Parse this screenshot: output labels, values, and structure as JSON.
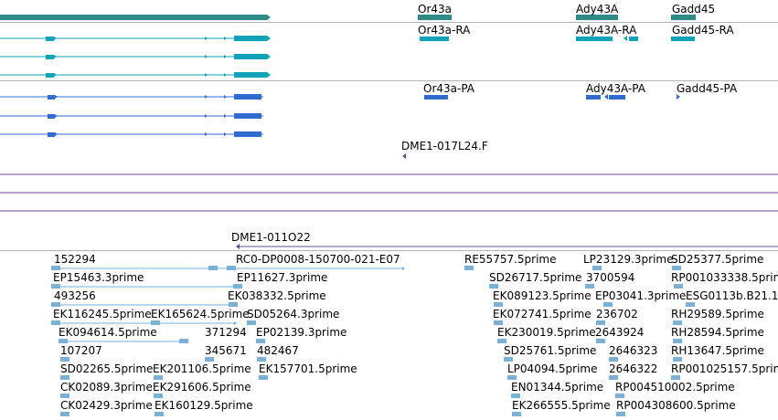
{
  "colors": {
    "gene": "#2e8b88",
    "transcript": "#11a3b8",
    "polypeptide": "#2f6bd0",
    "clone": "#6b4a9a",
    "est": "#79b2d8",
    "separator": "#b4b4b4"
  },
  "tracks": {
    "genes": {
      "labels": [
        "Or43a",
        "Ady43A",
        "Gadd45"
      ]
    },
    "transcripts": {
      "labels": [
        "Or43a-RA",
        "Ady43A-RA",
        "Gadd45-RA"
      ]
    },
    "polypeptides": {
      "labels": [
        "Or43a-PA",
        "Ady43A-PA",
        "Gadd45-PA"
      ]
    },
    "clone_ends": {
      "labels": [
        "DME1-017L24.F",
        "DME1-011O22"
      ]
    },
    "ests": {
      "labels": [
        "152294",
        "RC0-DP0008-150700-021-E07",
        "RE55757.5prime",
        "LP23129.3prime",
        "SD25377.5prime",
        "EP15463.3prime",
        "EP11627.3prime",
        "SD26717.5prime",
        "3700594",
        "RP001033338.5prime",
        "493256",
        "EK038332.5prime",
        "EK089123.5prime",
        "EP03041.3prime",
        "ESG0113b.B21.1",
        "EK116245.5prime",
        "EK165624.5prime",
        "SD05264.3prime",
        "EK072741.5prime",
        "236702",
        "RH29589.5prime",
        "EK094614.5prime",
        "371294",
        "EP02139.3prime",
        "EK230019.5prime",
        "2643924",
        "RH28594.5prime",
        "107207",
        "345671",
        "482467",
        "SD25761.5prime",
        "2646323",
        "RH13647.5prime",
        "SD02265.5prime",
        "EK201106.5prime",
        "EK157701.5prime",
        "LP04094.5prime",
        "2646322",
        "RP001025157.5prime",
        "CK02089.3prime",
        "EK291606.5prime",
        "EN01344.5prime",
        "RP004510002.5prime",
        "CK02429.3prime",
        "EK160129.5prime",
        "EK266555.5prime",
        "RP004308600.5prime"
      ]
    }
  }
}
